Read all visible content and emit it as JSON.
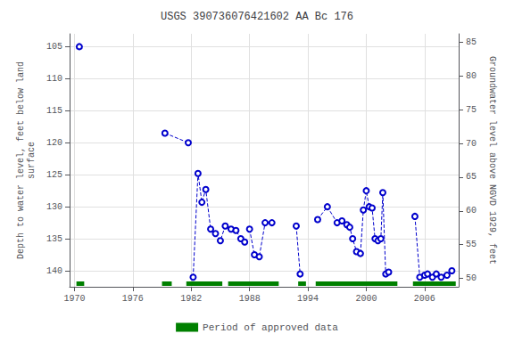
{
  "chart_data": {
    "type": "line",
    "title": "USGS 390736076421602 AA Bc 176",
    "ylabel": "Depth to water level, feet below land\nsurface",
    "y2label": "Groundwater level above NGVD 1929, feet",
    "xlim": [
      1969.5,
      2009.5
    ],
    "xticks": [
      1970,
      1976,
      1982,
      1988,
      1994,
      2000,
      2006
    ],
    "ylim": [
      142.5,
      103
    ],
    "yticks": [
      105,
      110,
      115,
      120,
      125,
      130,
      135,
      140
    ],
    "y2lim": [
      48.75,
      86.25
    ],
    "y2ticks": [
      50,
      55,
      60,
      65,
      70,
      75,
      80,
      85
    ],
    "grid": true,
    "legend": "bottom",
    "series": [
      {
        "type": "line",
        "color": "#0000CC",
        "line_style": "dashed",
        "marker": "open_circle",
        "x": [
          1970.5
        ],
        "values": [
          105
        ]
      },
      {
        "type": "line",
        "color": "#0000CC",
        "line_style": "dashed",
        "marker": "open_circle",
        "x": [
          1979.3,
          1981.7
        ],
        "values": [
          118.5,
          120
        ]
      },
      {
        "type": "line",
        "color": "#0000CC",
        "line_style": "dashed",
        "marker": "open_circle",
        "x": [
          1982.2,
          1982.7,
          1983.1,
          1983.5,
          1984.0,
          1984.5,
          1985.0,
          1985.5,
          1986.1,
          1986.6,
          1987.1,
          1987.5
        ],
        "values": [
          141.0,
          124.8,
          129.3,
          127.3,
          133.5,
          134.2,
          135.3,
          133.0,
          133.5,
          133.7,
          135.0,
          135.5
        ]
      },
      {
        "type": "line",
        "color": "#0000CC",
        "line_style": "dashed",
        "marker": "open_circle",
        "x": [
          1988.0,
          1988.5,
          1989.0,
          1989.6,
          1990.3
        ],
        "values": [
          133.5,
          137.5,
          137.8,
          132.5,
          132.5
        ]
      },
      {
        "type": "line",
        "color": "#0000CC",
        "line_style": "dashed",
        "marker": "open_circle",
        "x": [
          1992.8,
          1993.2
        ],
        "values": [
          133.0,
          140.5
        ]
      },
      {
        "type": "line",
        "color": "#0000CC",
        "line_style": "dashed",
        "marker": "open_circle",
        "x": [
          1995.0,
          1996.0,
          1997.0,
          1997.5,
          1998.0,
          1998.3,
          1998.6,
          1999.0,
          1999.4,
          1999.7,
          2000.0,
          2000.3,
          2000.6,
          2000.9,
          2001.2,
          2001.5,
          2001.7,
          2002.0,
          2002.3
        ],
        "values": [
          132.0,
          130.0,
          132.5,
          132.2,
          132.8,
          133.2,
          135.0,
          137.0,
          137.3,
          130.5,
          127.5,
          130.0,
          130.2,
          135.0,
          135.3,
          135.0,
          127.8,
          140.5,
          140.2
        ]
      },
      {
        "type": "line",
        "color": "#0000CC",
        "line_style": "dashed",
        "marker": "open_circle",
        "x": [
          2005.0,
          2005.5,
          2006.0,
          2006.3,
          2006.8,
          2007.2,
          2007.7,
          2008.3,
          2008.8
        ],
        "values": [
          131.5,
          141.0,
          140.7,
          140.5,
          141.0,
          140.5,
          141.0,
          140.7,
          140.0
        ]
      },
      {
        "type": "range",
        "name": "Period of approved data",
        "color": "#008000",
        "periods": [
          [
            1970.2,
            1971.0
          ],
          [
            1979.0,
            1980.0
          ],
          [
            1981.5,
            1985.2
          ],
          [
            1985.8,
            1991.0
          ],
          [
            1993.0,
            1993.8
          ],
          [
            1994.8,
            2003.2
          ],
          [
            2004.8,
            2009.2
          ]
        ]
      }
    ]
  }
}
